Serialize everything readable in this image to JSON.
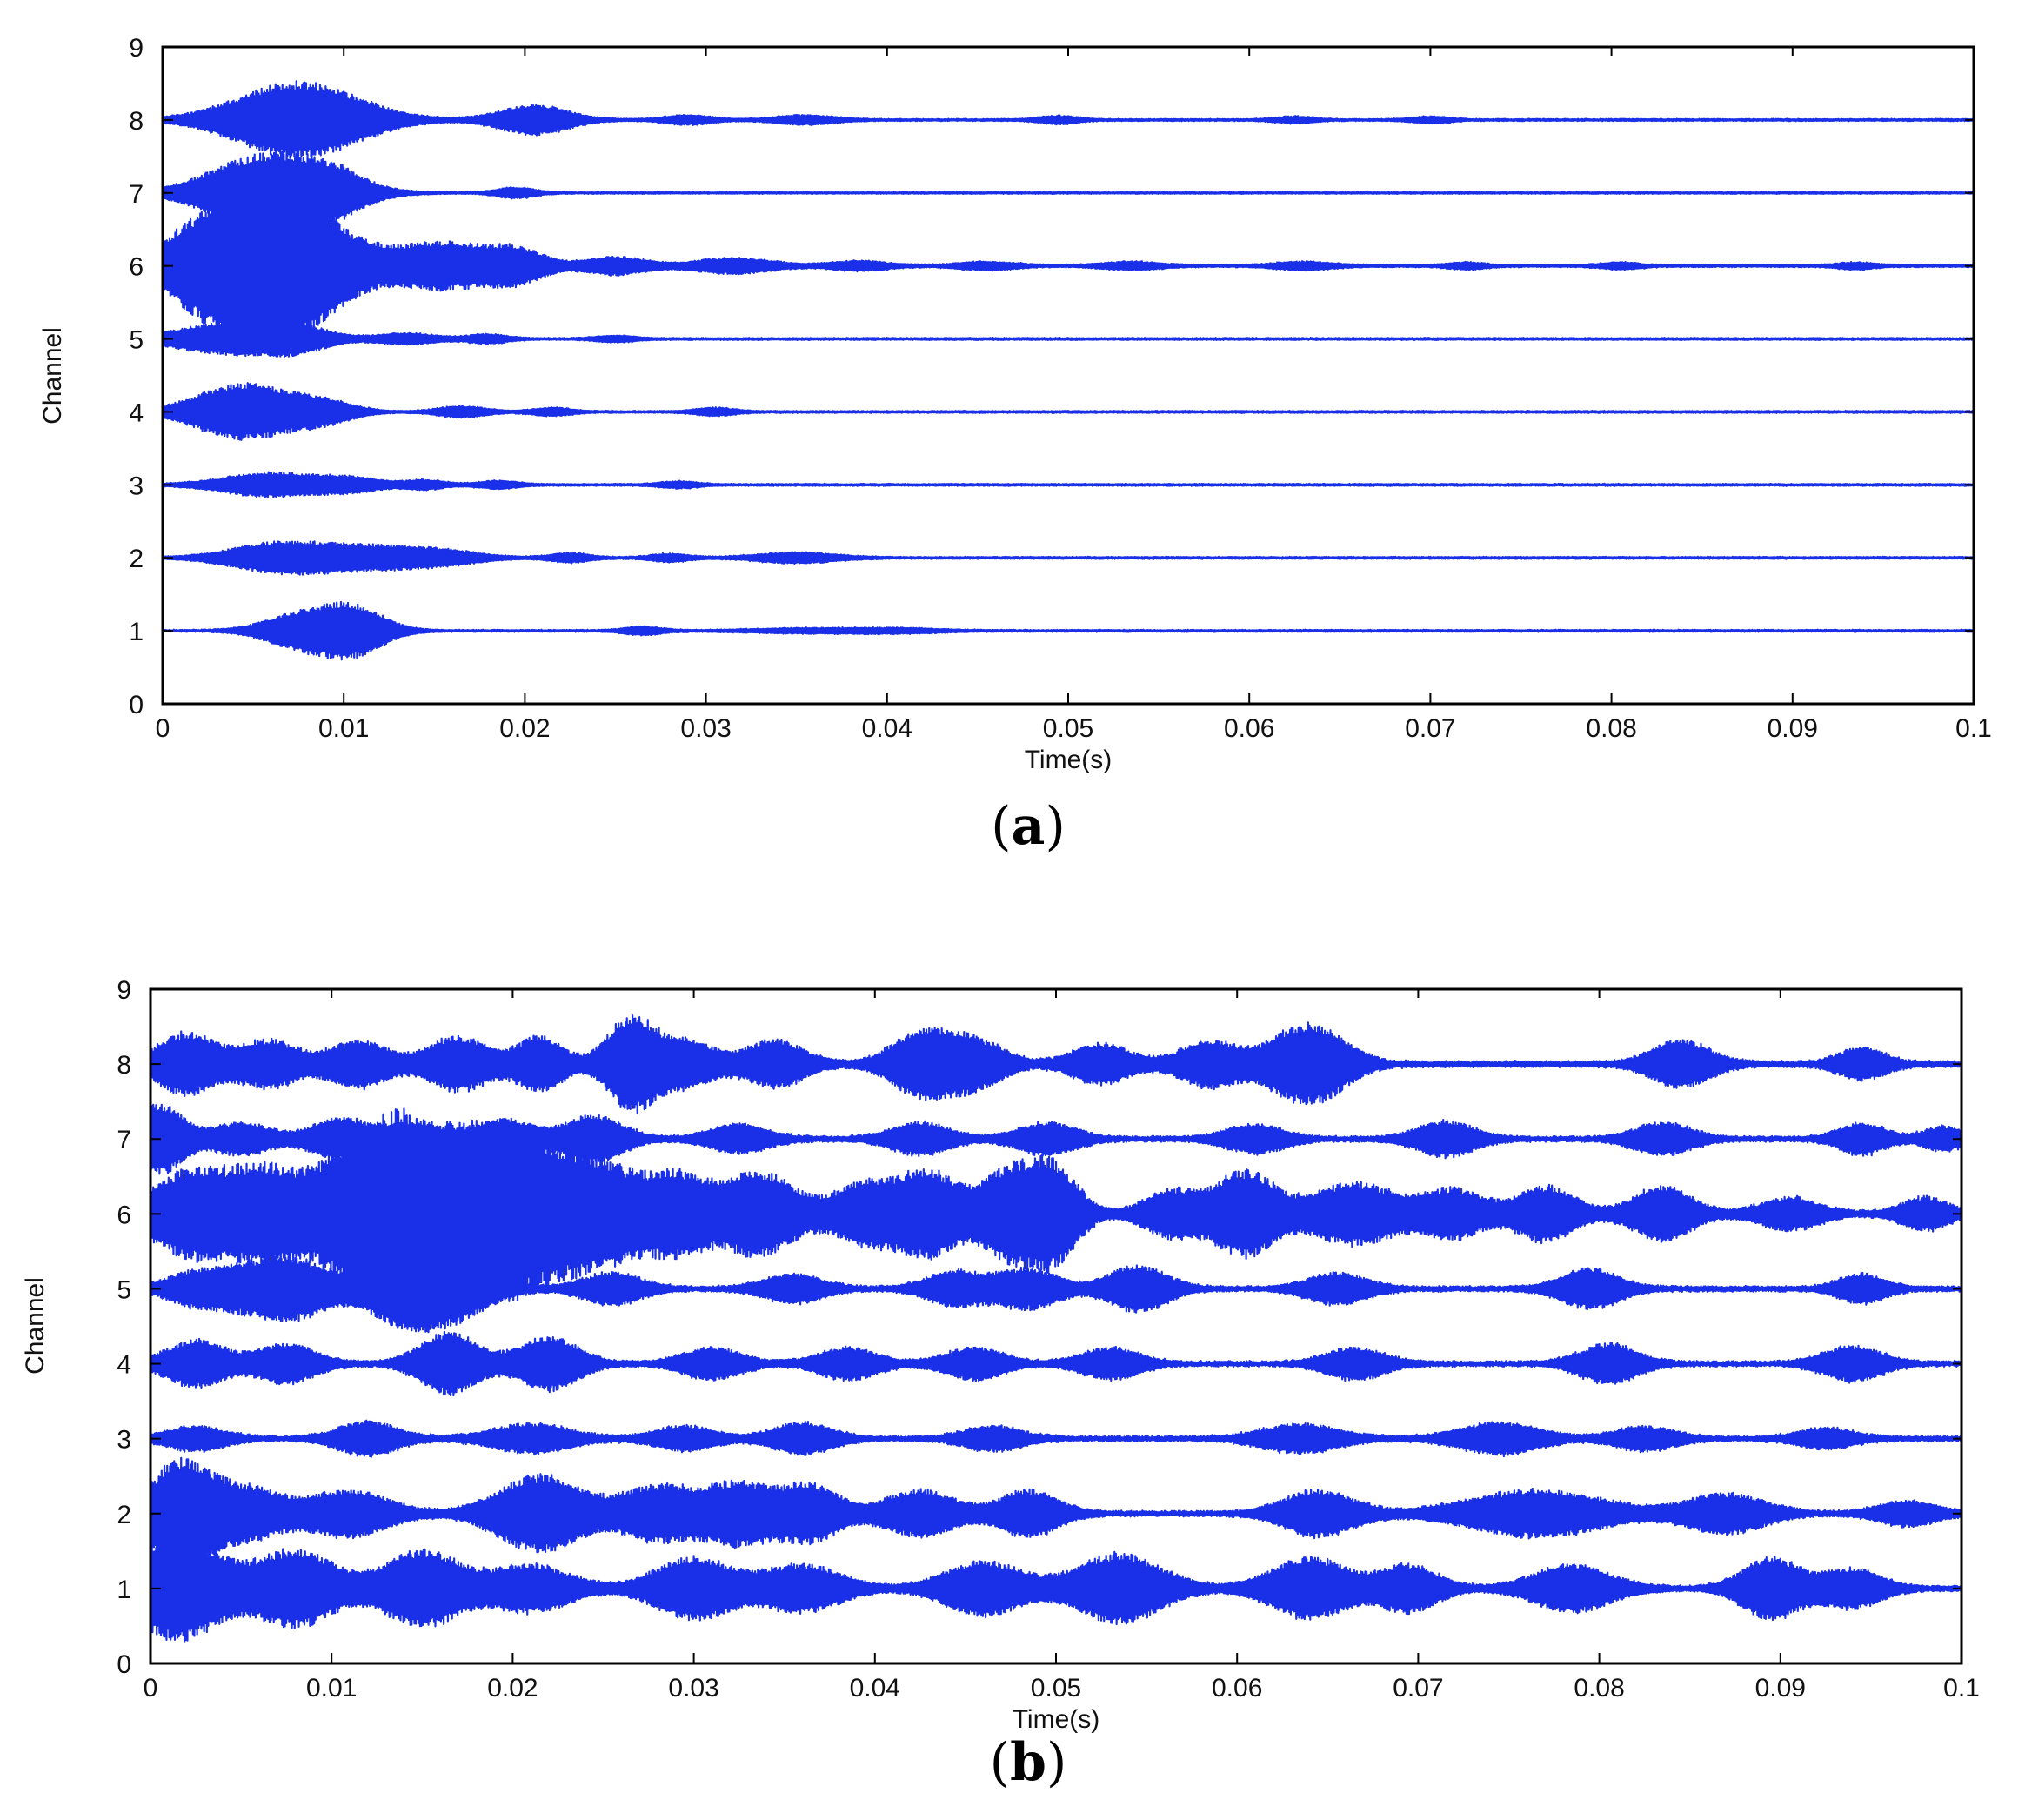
{
  "chart_data": [
    {
      "panel": "a",
      "type": "line",
      "caption": {
        "open": "(",
        "letter": "a",
        "close": ")"
      },
      "title": "",
      "xlabel": "Time(s)",
      "ylabel": "Channel",
      "xlim": [
        0,
        0.1
      ],
      "ylim": [
        0,
        9
      ],
      "xticks": [
        0,
        0.01,
        0.02,
        0.03,
        0.04,
        0.05,
        0.06,
        0.07,
        0.08,
        0.09,
        0.1
      ],
      "xtick_labels": [
        "0",
        "0.01",
        "0.02",
        "0.03",
        "0.04",
        "0.05",
        "0.06",
        "0.07",
        "0.08",
        "0.09",
        "0.1"
      ],
      "yticks": [
        0,
        1,
        2,
        3,
        4,
        5,
        6,
        7,
        8,
        9
      ],
      "ytick_labels": [
        "0",
        "1",
        "2",
        "3",
        "4",
        "5",
        "6",
        "7",
        "8",
        "9"
      ],
      "grid": false,
      "color": "#1a30e8",
      "series": [
        {
          "channel": 1,
          "noise": 0.012,
          "bursts": [
            [
              0.0075,
              0.0018,
              0.22
            ],
            [
              0.0105,
              0.0016,
              0.32
            ],
            [
              0.0265,
              0.001,
              0.05
            ],
            [
              0.036,
              0.003,
              0.03
            ],
            [
              0.041,
              0.002,
              0.025
            ]
          ]
        },
        {
          "channel": 2,
          "noise": 0.012,
          "bursts": [
            [
              0.0065,
              0.0025,
              0.2
            ],
            [
              0.0115,
              0.0025,
              0.14
            ],
            [
              0.0155,
              0.002,
              0.08
            ],
            [
              0.0225,
              0.001,
              0.06
            ],
            [
              0.028,
              0.001,
              0.05
            ],
            [
              0.035,
              0.002,
              0.07
            ]
          ]
        },
        {
          "channel": 3,
          "noise": 0.012,
          "bursts": [
            [
              0.006,
              0.0025,
              0.16
            ],
            [
              0.0105,
              0.0015,
              0.08
            ],
            [
              0.0145,
              0.001,
              0.06
            ],
            [
              0.0185,
              0.001,
              0.05
            ],
            [
              0.0285,
              0.001,
              0.04
            ]
          ]
        },
        {
          "channel": 4,
          "noise": 0.012,
          "bursts": [
            [
              0.0045,
              0.0025,
              0.38
            ],
            [
              0.009,
              0.0015,
              0.12
            ],
            [
              0.0165,
              0.0012,
              0.07
            ],
            [
              0.0215,
              0.001,
              0.05
            ],
            [
              0.0305,
              0.001,
              0.05
            ]
          ]
        },
        {
          "channel": 5,
          "noise": 0.012,
          "bursts": [
            [
              0.004,
              0.003,
              0.22
            ],
            [
              0.0075,
              0.0015,
              0.1
            ],
            [
              0.0135,
              0.0015,
              0.07
            ],
            [
              0.018,
              0.001,
              0.06
            ],
            [
              0.025,
              0.001,
              0.04
            ]
          ]
        },
        {
          "channel": 6,
          "noise": 0.014,
          "bursts": [
            [
              0.0055,
              0.0035,
              1.22
            ],
            [
              0.0155,
              0.0022,
              0.3
            ],
            [
              0.0195,
              0.0015,
              0.22
            ],
            [
              0.025,
              0.0015,
              0.12
            ],
            [
              0.0315,
              0.002,
              0.1
            ],
            [
              0.0385,
              0.0015,
              0.06
            ],
            [
              0.0455,
              0.0015,
              0.05
            ],
            [
              0.0535,
              0.0015,
              0.05
            ],
            [
              0.063,
              0.0015,
              0.05
            ],
            [
              0.072,
              0.001,
              0.04
            ],
            [
              0.0805,
              0.001,
              0.04
            ],
            [
              0.0935,
              0.001,
              0.04
            ]
          ]
        },
        {
          "channel": 7,
          "noise": 0.01,
          "bursts": [
            [
              0.006,
              0.003,
              0.55
            ],
            [
              0.0095,
              0.0015,
              0.14
            ],
            [
              0.0195,
              0.001,
              0.07
            ]
          ]
        },
        {
          "channel": 8,
          "noise": 0.012,
          "bursts": [
            [
              0.0075,
              0.0032,
              0.52
            ],
            [
              0.0205,
              0.0018,
              0.2
            ],
            [
              0.029,
              0.0012,
              0.06
            ],
            [
              0.0355,
              0.0015,
              0.06
            ],
            [
              0.0495,
              0.001,
              0.05
            ],
            [
              0.0625,
              0.001,
              0.04
            ],
            [
              0.07,
              0.001,
              0.04
            ]
          ]
        }
      ]
    },
    {
      "panel": "b",
      "type": "line",
      "caption": {
        "open": "(",
        "letter": "b",
        "close": ")"
      },
      "title": "",
      "xlabel": "Time(s)",
      "ylabel": "Channel",
      "xlim": [
        0,
        0.1
      ],
      "ylim": [
        0,
        9
      ],
      "xticks": [
        0,
        0.01,
        0.02,
        0.03,
        0.04,
        0.05,
        0.06,
        0.07,
        0.08,
        0.09,
        0.1
      ],
      "xtick_labels": [
        "0",
        "0.01",
        "0.02",
        "0.03",
        "0.04",
        "0.05",
        "0.06",
        "0.07",
        "0.08",
        "0.09",
        "0.1"
      ],
      "yticks": [
        0,
        1,
        2,
        3,
        4,
        5,
        6,
        7,
        8,
        9
      ],
      "ytick_labels": [
        "0",
        "1",
        "2",
        "3",
        "4",
        "5",
        "6",
        "7",
        "8",
        "9"
      ],
      "grid": false,
      "color": "#1a30e8",
      "series": [
        {
          "channel": 1,
          "noise": 0.03,
          "bursts": [
            [
              0.0015,
              0.0022,
              0.7
            ],
            [
              0.008,
              0.002,
              0.5
            ],
            [
              0.015,
              0.002,
              0.5
            ],
            [
              0.021,
              0.002,
              0.3
            ],
            [
              0.03,
              0.002,
              0.4
            ],
            [
              0.036,
              0.002,
              0.3
            ],
            [
              0.046,
              0.002,
              0.35
            ],
            [
              0.0535,
              0.0022,
              0.45
            ],
            [
              0.064,
              0.002,
              0.4
            ],
            [
              0.0695,
              0.0015,
              0.3
            ],
            [
              0.0785,
              0.002,
              0.3
            ],
            [
              0.0895,
              0.0015,
              0.4
            ],
            [
              0.094,
              0.0015,
              0.25
            ]
          ]
        },
        {
          "channel": 2,
          "noise": 0.03,
          "bursts": [
            [
              0.0015,
              0.0015,
              0.65
            ],
            [
              0.005,
              0.002,
              0.35
            ],
            [
              0.011,
              0.002,
              0.3
            ],
            [
              0.0215,
              0.0022,
              0.5
            ],
            [
              0.028,
              0.0018,
              0.35
            ],
            [
              0.0325,
              0.0018,
              0.4
            ],
            [
              0.0365,
              0.0015,
              0.35
            ],
            [
              0.0425,
              0.0018,
              0.3
            ],
            [
              0.0485,
              0.0015,
              0.3
            ],
            [
              0.0645,
              0.0018,
              0.3
            ],
            [
              0.0765,
              0.0035,
              0.3
            ],
            [
              0.087,
              0.002,
              0.25
            ],
            [
              0.097,
              0.0015,
              0.15
            ]
          ]
        },
        {
          "channel": 3,
          "noise": 0.03,
          "bursts": [
            [
              0.0025,
              0.0015,
              0.15
            ],
            [
              0.012,
              0.0015,
              0.22
            ],
            [
              0.021,
              0.002,
              0.18
            ],
            [
              0.0295,
              0.0015,
              0.15
            ],
            [
              0.036,
              0.0015,
              0.2
            ],
            [
              0.0465,
              0.0015,
              0.15
            ],
            [
              0.0635,
              0.002,
              0.18
            ],
            [
              0.0745,
              0.002,
              0.2
            ],
            [
              0.0825,
              0.0015,
              0.15
            ],
            [
              0.0925,
              0.0015,
              0.12
            ]
          ]
        },
        {
          "channel": 4,
          "noise": 0.03,
          "bursts": [
            [
              0.0025,
              0.0015,
              0.3
            ],
            [
              0.0075,
              0.0015,
              0.25
            ],
            [
              0.0165,
              0.0015,
              0.4
            ],
            [
              0.022,
              0.0015,
              0.35
            ],
            [
              0.031,
              0.0015,
              0.2
            ],
            [
              0.0385,
              0.0015,
              0.2
            ],
            [
              0.0455,
              0.0015,
              0.2
            ],
            [
              0.053,
              0.0015,
              0.2
            ],
            [
              0.0665,
              0.0015,
              0.2
            ],
            [
              0.0805,
              0.0015,
              0.25
            ],
            [
              0.094,
              0.0015,
              0.22
            ]
          ]
        },
        {
          "channel": 5,
          "noise": 0.03,
          "bursts": [
            [
              0.0025,
              0.0015,
              0.2
            ],
            [
              0.006,
              0.0018,
              0.3
            ],
            [
              0.0085,
              0.0015,
              0.25
            ],
            [
              0.0135,
              0.0018,
              0.35
            ],
            [
              0.0165,
              0.002,
              0.4
            ],
            [
              0.0255,
              0.0015,
              0.2
            ],
            [
              0.0355,
              0.0015,
              0.18
            ],
            [
              0.0445,
              0.0015,
              0.22
            ],
            [
              0.0485,
              0.0015,
              0.25
            ],
            [
              0.0545,
              0.0015,
              0.3
            ],
            [
              0.0655,
              0.0015,
              0.2
            ],
            [
              0.0795,
              0.0015,
              0.25
            ],
            [
              0.0945,
              0.0012,
              0.18
            ]
          ]
        },
        {
          "channel": 6,
          "noise": 0.035,
          "bursts": [
            [
              0.002,
              0.002,
              0.5
            ],
            [
              0.0065,
              0.0022,
              0.6
            ],
            [
              0.0115,
              0.0018,
              0.8
            ],
            [
              0.014,
              0.0015,
              0.95
            ],
            [
              0.017,
              0.0015,
              0.8
            ],
            [
              0.02,
              0.002,
              0.95
            ],
            [
              0.0245,
              0.0022,
              0.7
            ],
            [
              0.029,
              0.0015,
              0.45
            ],
            [
              0.0335,
              0.002,
              0.55
            ],
            [
              0.0395,
              0.0015,
              0.4
            ],
            [
              0.043,
              0.0015,
              0.55
            ],
            [
              0.0475,
              0.0015,
              0.6
            ],
            [
              0.05,
              0.0012,
              0.55
            ],
            [
              0.0565,
              0.0015,
              0.3
            ],
            [
              0.0605,
              0.0015,
              0.55
            ],
            [
              0.0665,
              0.0022,
              0.4
            ],
            [
              0.072,
              0.0015,
              0.3
            ],
            [
              0.077,
              0.0015,
              0.35
            ],
            [
              0.0835,
              0.0015,
              0.35
            ],
            [
              0.0905,
              0.0015,
              0.2
            ],
            [
              0.098,
              0.0012,
              0.2
            ]
          ]
        },
        {
          "channel": 7,
          "noise": 0.03,
          "bursts": [
            [
              0.0005,
              0.0012,
              0.45
            ],
            [
              0.005,
              0.0015,
              0.2
            ],
            [
              0.0105,
              0.0015,
              0.25
            ],
            [
              0.0145,
              0.0015,
              0.2
            ],
            [
              0.0195,
              0.0015,
              0.25
            ],
            [
              0.0245,
              0.0015,
              0.3
            ],
            [
              0.0325,
              0.0015,
              0.18
            ],
            [
              0.0425,
              0.0015,
              0.2
            ],
            [
              0.0495,
              0.0015,
              0.2
            ],
            [
              0.061,
              0.0015,
              0.18
            ],
            [
              0.0715,
              0.0015,
              0.22
            ],
            [
              0.0835,
              0.0015,
              0.2
            ],
            [
              0.0945,
              0.0012,
              0.2
            ],
            [
              0.099,
              0.001,
              0.15
            ]
          ]
        },
        {
          "channel": 8,
          "noise": 0.035,
          "bursts": [
            [
              0.002,
              0.0015,
              0.4
            ],
            [
              0.0065,
              0.0015,
              0.3
            ],
            [
              0.0115,
              0.0015,
              0.3
            ],
            [
              0.017,
              0.0015,
              0.35
            ],
            [
              0.0215,
              0.0012,
              0.35
            ],
            [
              0.0265,
              0.0012,
              0.6
            ],
            [
              0.0295,
              0.0015,
              0.3
            ],
            [
              0.0345,
              0.0015,
              0.3
            ],
            [
              0.0425,
              0.0015,
              0.4
            ],
            [
              0.0455,
              0.0015,
              0.3
            ],
            [
              0.0525,
              0.0015,
              0.25
            ],
            [
              0.0585,
              0.0015,
              0.3
            ],
            [
              0.063,
              0.0015,
              0.35
            ],
            [
              0.065,
              0.0015,
              0.3
            ],
            [
              0.0845,
              0.0015,
              0.3
            ],
            [
              0.0945,
              0.0012,
              0.2
            ]
          ]
        }
      ]
    }
  ]
}
